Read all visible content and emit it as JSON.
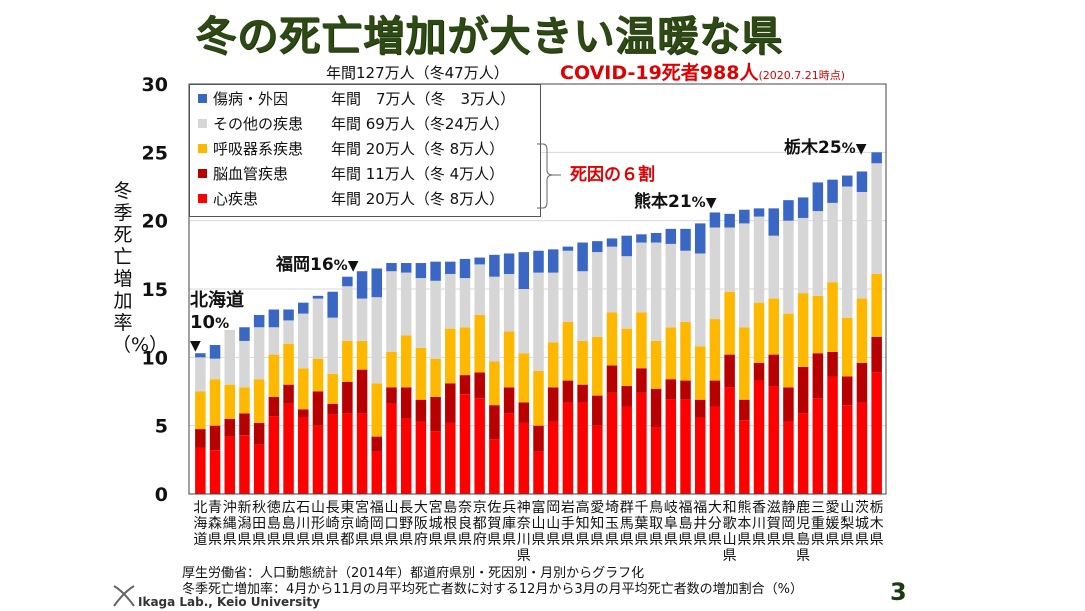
{
  "header": {
    "title": "冬の死亡増加が大きい温暖な県",
    "subtitle": "年間127万人（冬47万人）",
    "covid_label": "COVID-19死者988人",
    "covid_date": "(2020.7.21時点)"
  },
  "legend": {
    "items": [
      {
        "name": "傷病・外因",
        "value": "年間　7万人（冬　3万人）",
        "color": "#3a66c4"
      },
      {
        "name": "その他の疾患",
        "value": "年間 69万人（冬24万人）",
        "color": "#d6d6d6"
      },
      {
        "name": "呼吸器系疾患",
        "value": "年間 20万人（冬 8万人）",
        "color": "#ffb800"
      },
      {
        "name": "脳血管疾患",
        "value": "年間 11万人（冬 4万人）",
        "color": "#b80000"
      },
      {
        "name": "心疾患",
        "value": "年間 20万人（冬 8万人）",
        "color": "#ff0000"
      }
    ],
    "bracket_label": "死因の６割"
  },
  "annotations": [
    {
      "prefecture": "北海道",
      "label": "北海道",
      "pct": "10",
      "unit": "%"
    },
    {
      "prefecture": "福岡県",
      "label": "福岡",
      "pct": "16",
      "unit": "%"
    },
    {
      "prefecture": "熊本県",
      "label": "熊本",
      "pct": "21",
      "unit": "%"
    },
    {
      "prefecture": "栃木県",
      "label": "栃木",
      "pct": "25",
      "unit": "%"
    }
  ],
  "footer": {
    "source": "厚生労働省：人口動態統計（2014年）都道府県別・死因別・月別からグラフ化",
    "definition": "冬季死亡増加率：4月から11月の月平均死亡者数に対する12月から3月の月平均死亡者数の増加割合（%）",
    "lab": "Ikaga Lab., Keio University",
    "page": "3"
  },
  "chart_data": {
    "type": "bar",
    "stacked": true,
    "title": "冬の死亡増加が大きい温暖な県",
    "xlabel": "",
    "ylabel": "冬季死亡増加率（%）",
    "ylim": [
      0,
      30
    ],
    "yticks": [
      0,
      5,
      10,
      15,
      20,
      25,
      30
    ],
    "grid": true,
    "legend_position": "top-left",
    "categories": [
      "北海道",
      "青森県",
      "沖縄県",
      "新潟県",
      "秋田県",
      "徳島県",
      "広島県",
      "石川県",
      "山形県",
      "長崎県",
      "東京都",
      "宮崎県",
      "福岡県",
      "山口県",
      "長野県",
      "大阪府",
      "宮城県",
      "島根県",
      "奈良県",
      "京都府",
      "佐賀県",
      "兵庫県",
      "神奈川県",
      "富山県",
      "岡山県",
      "岩手県",
      "高知県",
      "愛知県",
      "埼玉県",
      "群馬県",
      "千葉県",
      "鳥取県",
      "岐阜県",
      "福島県",
      "福井県",
      "大分県",
      "和歌山県",
      "熊本県",
      "香川県",
      "滋賀県",
      "静岡県",
      "鹿児島県",
      "三重県",
      "愛媛県",
      "山梨県",
      "茨城県",
      "栃木県"
    ],
    "series": [
      {
        "name": "心疾患",
        "color": "#ff0000",
        "values": [
          3.4,
          3.2,
          4.2,
          4.3,
          3.6,
          5.7,
          6.6,
          5.6,
          5.0,
          5.8,
          5.9,
          5.9,
          3.1,
          6.6,
          5.5,
          5.3,
          4.6,
          5.2,
          7.3,
          7.0,
          4.0,
          5.9,
          5.2,
          3.1,
          5.3,
          6.7,
          6.7,
          5.0,
          7.4,
          6.4,
          7.4,
          4.9,
          6.9,
          6.9,
          5.6,
          6.4,
          7.8,
          5.4,
          8.3,
          7.9,
          5.3,
          5.9,
          7.0,
          8.6,
          6.5,
          6.7,
          8.9
        ]
      },
      {
        "name": "脳血管疾患",
        "color": "#b80000",
        "values": [
          1.35,
          1.8,
          1.3,
          1.6,
          1.6,
          1.4,
          1.4,
          0.6,
          2.5,
          0.8,
          2.3,
          3.2,
          1.1,
          1.2,
          2.3,
          1.6,
          2.5,
          2.9,
          1.4,
          1.9,
          2.5,
          1.9,
          1.5,
          1.9,
          2.5,
          1.6,
          1.3,
          2.2,
          2.0,
          1.5,
          1.8,
          2.8,
          1.5,
          1.4,
          1.3,
          1.9,
          2.4,
          1.5,
          1.3,
          2.3,
          2.5,
          3.4,
          3.3,
          1.8,
          2.1,
          2.9,
          2.6
        ]
      },
      {
        "name": "呼吸器系疾患",
        "color": "#ffb800",
        "values": [
          2.75,
          3.4,
          2.5,
          1.9,
          3.2,
          3.1,
          3.0,
          3.0,
          2.4,
          2.2,
          3.0,
          2.1,
          3.9,
          2.6,
          3.8,
          3.8,
          2.8,
          4.0,
          3.5,
          4.2,
          3.2,
          4.1,
          3.6,
          4.0,
          3.3,
          4.3,
          3.2,
          4.3,
          3.9,
          4.2,
          4.1,
          3.5,
          3.8,
          4.3,
          3.9,
          4.5,
          4.6,
          5.3,
          4.4,
          4.1,
          5.4,
          5.4,
          4.2,
          5.1,
          4.3,
          4.7,
          4.6
        ]
      },
      {
        "name": "その他の疾患",
        "color": "#d6d6d6",
        "values": [
          2.5,
          1.5,
          4.0,
          3.4,
          3.8,
          2.0,
          1.7,
          4.0,
          4.4,
          4.1,
          4.0,
          3.1,
          6.3,
          5.9,
          4.6,
          5.1,
          5.7,
          4.0,
          3.6,
          3.7,
          6.2,
          4.2,
          4.7,
          7.2,
          5.1,
          5.2,
          5.1,
          6.2,
          4.8,
          5.3,
          5.1,
          7.2,
          6.1,
          5.2,
          6.8,
          6.7,
          4.7,
          7.6,
          6.3,
          4.6,
          6.8,
          5.5,
          6.2,
          5.8,
          9.6,
          7.8,
          8.1
        ]
      },
      {
        "name": "傷病・外因",
        "color": "#3a66c4",
        "values": [
          0.3,
          1.0,
          0.0,
          1.0,
          0.9,
          1.3,
          0.8,
          0.8,
          0.2,
          1.9,
          0.7,
          2.0,
          2.1,
          0.6,
          0.7,
          1.1,
          1.4,
          0.9,
          1.4,
          0.5,
          1.6,
          1.5,
          2.7,
          1.6,
          1.7,
          0.3,
          2.1,
          0.8,
          0.6,
          1.5,
          0.6,
          0.7,
          1.1,
          1.6,
          2.2,
          1.1,
          1.0,
          1.0,
          0.6,
          2.0,
          1.5,
          1.5,
          2.1,
          1.7,
          0.8,
          1.5,
          0.8
        ]
      }
    ]
  }
}
